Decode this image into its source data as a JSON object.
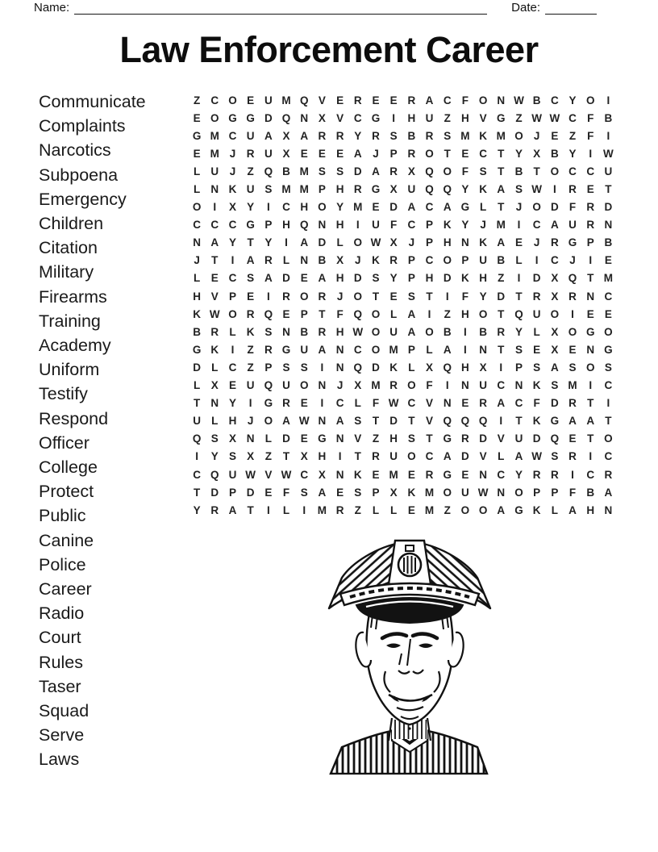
{
  "header": {
    "name_label": "Name:",
    "date_label": "Date:"
  },
  "title": "Law Enforcement Career",
  "words": [
    "Communicate",
    "Complaints",
    "Narcotics",
    "Subpoena",
    "Emergency",
    "Children",
    "Citation",
    "Military",
    "Firearms",
    "Training",
    "Academy",
    "Uniform",
    "Testify",
    "Respond",
    "Officer",
    "College",
    "Protect",
    "Public",
    "Canine",
    "Police",
    "Career",
    "Radio",
    "Court",
    "Rules",
    "Taser",
    "Squad",
    "Serve",
    "Laws"
  ],
  "grid": {
    "rows": 24,
    "cols": 24,
    "letters": [
      "ZCOEUMQVEREERACFONWBCYOI",
      "EOGGDQNXVCGIHUZHVGZWWCFB",
      "GMCUAXARRYRSBRSMKMOJEZFI",
      "EMJRUXEEEAJPROTECTYXBYIW",
      "LUJZQBMSSDARXQOFSTBTOCCU",
      "LNKUSMMPHRGXUQQYKASWIRET",
      "OIXYICHOYMEDACAGLTJODFRD",
      "CCCGPHQNHIUFCPKYJMICAURN",
      "NAYTYIADLOWXJPHNKAEJRGPB",
      "JTIARLNBXJKRPCOPUBLICJIE",
      "LECSADEAHDSYPHDKHZIDXQTM",
      "HVPEIRORJOTESTIFYDTRXRNC",
      "KWORQEPTFQOLAIZHOTQUOIEE",
      "BRLKSNBRHWOUAOBIBRYLXOGO",
      "GKIZRGUANCOMPLAINTSEXENG",
      "DLCZPSSINQDKLXQHXIPSASOS",
      "LXEUQUONJXMROFINUCNKSMIC",
      "TNYIGREICLFWCVNERACFDRTI",
      "ULHJOAWNASTDTVQQQITKGAAT",
      "QSXNLDEGNVZHSTGRDVUDQETO",
      "IYSXZTXHITRUOCADVLAWSRIC",
      "CQUWVWCXNKEMERGENCYRRICR",
      "TDPDEFSAESPXKMOUWNOPPFBA",
      "YRATILIMRZLLEMZOOAGKLAHN"
    ]
  },
  "illustration": {
    "alt": "Vintage line drawing of a smiling police officer wearing a peaked cap with badge"
  }
}
